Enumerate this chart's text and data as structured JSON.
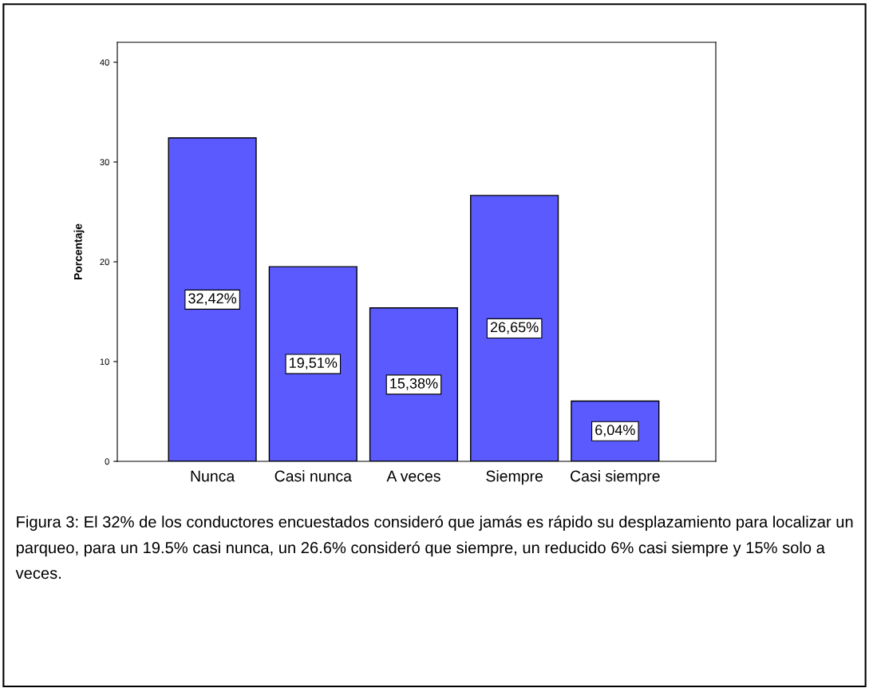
{
  "chart_data": {
    "type": "bar",
    "ylabel": "Porcentaje",
    "categories": [
      "Nunca",
      "Casi nunca",
      "A veces",
      "Siempre",
      "Casi siempre"
    ],
    "values": [
      32.42,
      19.51,
      15.38,
      26.65,
      6.04
    ],
    "value_labels": [
      "32,42%",
      "19,51%",
      "15,38%",
      "26,65%",
      "6,04%"
    ],
    "color": "#5a5aff",
    "ylim": [
      0,
      42
    ],
    "yticks": [
      0,
      10,
      20,
      30,
      40
    ],
    "grid": false,
    "legend": false,
    "annotations": [
      "Figura 3: El 32% de los conductores encuestados consideró que jamás es rápido su desplazamiento para localizar un parqueo, para un 19.5% casi nunca, un 26.6% consideró que siempre, un reducido 6% casi siempre y 15% solo a veces."
    ]
  }
}
